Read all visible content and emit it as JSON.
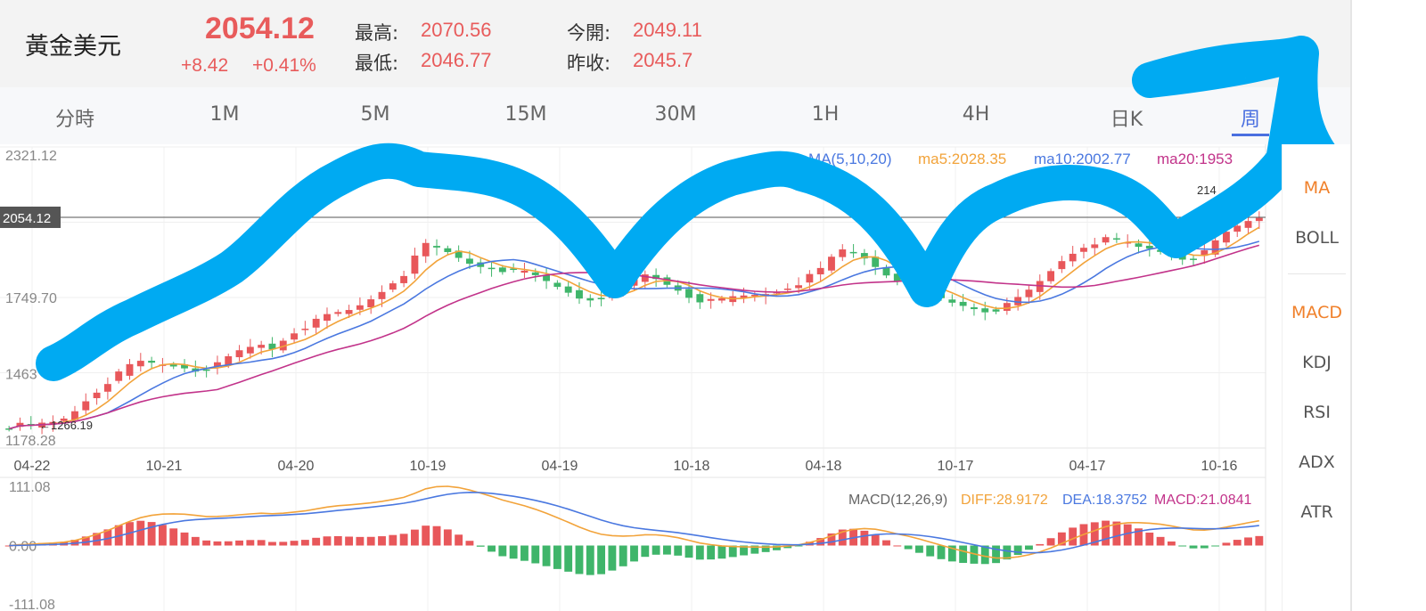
{
  "instrument": {
    "name": "黃金美元",
    "price": "2054.12",
    "change": "+8.42",
    "change_pct": "+0.41%"
  },
  "stats": {
    "high_label": "最高:",
    "high": "2070.56",
    "low_label": "最低:",
    "low": "2046.77",
    "open_label": "今開:",
    "open": "2049.11",
    "prev_close_label": "昨收:",
    "prev_close": "2045.7"
  },
  "tabs": [
    {
      "label": "分時"
    },
    {
      "label": "1M"
    },
    {
      "label": "5M"
    },
    {
      "label": "15M"
    },
    {
      "label": "30M"
    },
    {
      "label": "1H"
    },
    {
      "label": "4H"
    },
    {
      "label": "日K"
    },
    {
      "label": "周",
      "active": true
    }
  ],
  "indicators": {
    "main": [
      {
        "label": "MA",
        "active": true
      },
      {
        "label": "BOLL"
      }
    ],
    "sub": [
      {
        "label": "MACD",
        "active": true
      },
      {
        "label": "KDJ"
      },
      {
        "label": "RSI"
      },
      {
        "label": "ADX"
      },
      {
        "label": "ATR"
      }
    ]
  },
  "colors": {
    "up": "#e8575a",
    "down": "#3fb56a",
    "ma5": "#f2a33a",
    "ma10": "#4a78e0",
    "ma20": "#c2338a",
    "annotation": "#00aaf2"
  },
  "chart_data": [
    {
      "type": "candlestick",
      "y_top_label": "2321.12",
      "y_mid_label": "1749.70",
      "y_low_label": "1463",
      "y_bottom_label": "1178.28",
      "ylim": [
        1178.28,
        2321.12
      ],
      "current_price_label": "2054.12",
      "current_price": 2054.12,
      "low_marker_label": "1266.19",
      "x_tick_labels": [
        "04-22",
        "10-21",
        "04-20",
        "10-19",
        "04-19",
        "10-18",
        "04-18",
        "10-17",
        "04-17",
        "10-16"
      ],
      "legend": {
        "params": "MA(5,10,20)",
        "ma5": "ma5:2028.35",
        "ma10": "ma10:2002.77",
        "ma20": "ma20:1953"
      },
      "high_marker_label": "214",
      "price_path": [
        1260,
        1265,
        1262,
        1270,
        1275,
        1290,
        1320,
        1360,
        1395,
        1430,
        1460,
        1490,
        1505,
        1500,
        1495,
        1490,
        1485,
        1475,
        1480,
        1495,
        1520,
        1545,
        1560,
        1570,
        1555,
        1590,
        1620,
        1640,
        1660,
        1680,
        1690,
        1700,
        1720,
        1745,
        1775,
        1810,
        1840,
        1900,
        1950,
        1935,
        1920,
        1900,
        1880,
        1870,
        1865,
        1855,
        1850,
        1845,
        1830,
        1810,
        1790,
        1770,
        1750,
        1745,
        1755,
        1770,
        1790,
        1815,
        1835,
        1820,
        1800,
        1780,
        1755,
        1740,
        1735,
        1740,
        1750,
        1755,
        1760,
        1765,
        1775,
        1790,
        1805,
        1830,
        1855,
        1900,
        1930,
        1920,
        1900,
        1870,
        1840,
        1820,
        1800,
        1780,
        1760,
        1745,
        1730,
        1720,
        1710,
        1700,
        1705,
        1720,
        1745,
        1775,
        1810,
        1850,
        1890,
        1920,
        1945,
        1960,
        1970,
        1965,
        1955,
        1940,
        1935,
        1925,
        1910,
        1900,
        1905,
        1920,
        1960,
        1995,
        2020,
        2040,
        2054
      ]
    },
    {
      "type": "macd",
      "legend": {
        "params": "MACD(12,26,9)",
        "diff": "DIFF:28.9172",
        "dea": "DEA:18.3752",
        "macd": "MACD:21.0841"
      },
      "y_top_label": "111.08",
      "y_zero_label": "0.00",
      "y_bottom_label": "-111.08",
      "ylim": [
        -111.08,
        111.08
      ]
    }
  ]
}
